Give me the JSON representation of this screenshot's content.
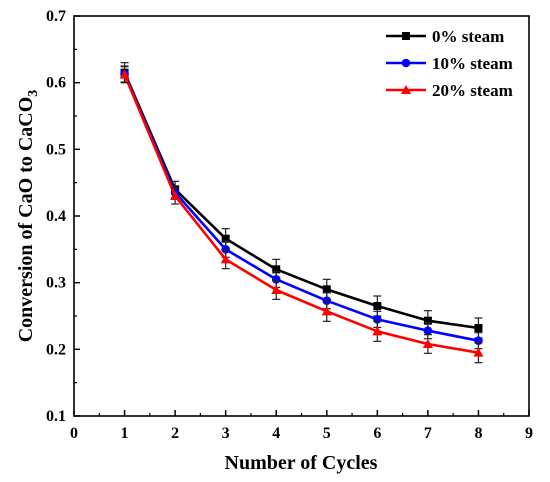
{
  "chart_data": {
    "type": "line",
    "xlabel": "Number of Cycles",
    "ylabel_main": "Conversion of CaO to CaCO",
    "ylabel_sub": "3",
    "xlim": [
      0,
      9
    ],
    "ylim": [
      0.1,
      0.7
    ],
    "xticks": [
      0,
      1,
      2,
      3,
      4,
      5,
      6,
      7,
      8,
      9
    ],
    "xtick_labels": [
      "0",
      "1",
      "2",
      "3",
      "4",
      "5",
      "6",
      "7",
      "8",
      "9"
    ],
    "yticks": [
      0.1,
      0.2,
      0.3,
      0.4,
      0.5,
      0.6,
      0.7
    ],
    "ytick_labels": [
      "0.1",
      "0.2",
      "0.3",
      "0.4",
      "0.5",
      "0.6",
      "0.7"
    ],
    "grid": false,
    "legend_position": "top-right",
    "x": [
      1,
      2,
      3,
      4,
      5,
      6,
      7,
      8
    ],
    "series": [
      {
        "name": "0% steam",
        "color": "#000000",
        "marker": "square",
        "values": [
          0.615,
          0.44,
          0.366,
          0.32,
          0.29,
          0.265,
          0.243,
          0.232
        ],
        "errors": [
          0.015,
          0.012,
          0.015,
          0.015,
          0.015,
          0.015,
          0.015,
          0.015
        ]
      },
      {
        "name": "10% steam",
        "color": "#0000ff",
        "marker": "circle",
        "values": [
          0.613,
          0.435,
          0.35,
          0.305,
          0.273,
          0.245,
          0.228,
          0.213
        ],
        "errors": [
          0.012,
          0.01,
          0.012,
          0.012,
          0.012,
          0.012,
          0.012,
          0.012
        ]
      },
      {
        "name": "20% steam",
        "color": "#ff0000",
        "marker": "triangle",
        "values": [
          0.612,
          0.43,
          0.335,
          0.289,
          0.257,
          0.227,
          0.208,
          0.195
        ],
        "errors": [
          0.012,
          0.012,
          0.014,
          0.014,
          0.015,
          0.015,
          0.014,
          0.015
        ]
      }
    ]
  }
}
